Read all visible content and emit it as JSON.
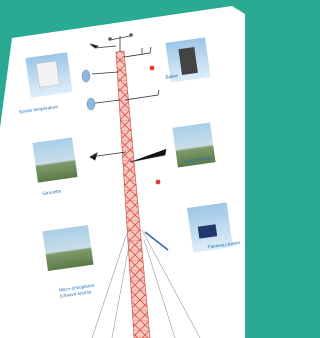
{
  "nodes": [
    {
      "label": "Sonde température"
    },
    {
      "label": "Balise"
    },
    {
      "label": "Girouette"
    },
    {
      "label": "Anémomètre"
    },
    {
      "label": "Micro-chiroptères",
      "sublabel": "(chauve-souris)"
    },
    {
      "label": "Panneau solaire"
    }
  ]
}
